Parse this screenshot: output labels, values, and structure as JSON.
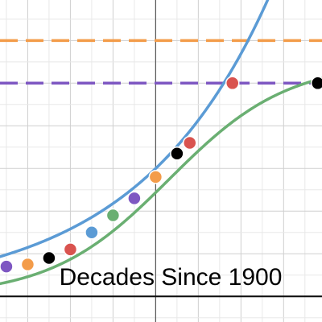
{
  "chart_data": {
    "type": "scatter",
    "title": "",
    "xlabel": "Decades Since 1900",
    "ylabel": "",
    "xlim": [
      -3.65,
      3.9
    ],
    "ylim": [
      -0.6,
      6.95
    ],
    "grid": true,
    "colors": {
      "blue": "#5b9bd5",
      "green": "#6aaf72",
      "orange": "#f39c4a",
      "purple": "#7e57c2",
      "red": "#d9534f",
      "black": "#000000"
    },
    "reference_lines": [
      {
        "y": 6.0,
        "color": "#f39c4a",
        "style": "dashed"
      },
      {
        "y": 5.0,
        "color": "#7e57c2",
        "style": "dashed"
      }
    ],
    "curves": [
      {
        "kind": "exponential",
        "a": 3.0,
        "b": 0.32,
        "color": "#5b9bd5"
      },
      {
        "kind": "logistic",
        "L": 5.5,
        "k": 0.72,
        "x0": 0.32,
        "color": "#6aaf72"
      }
    ],
    "series": [
      {
        "values": [
          {
            "x": -3.5,
            "y": 0.7,
            "color": "#7e57c2"
          },
          {
            "x": -3.0,
            "y": 0.75,
            "color": "#f39c4a"
          },
          {
            "x": -2.5,
            "y": 0.9,
            "color": "#000000"
          },
          {
            "x": -2.0,
            "y": 1.1,
            "color": "#d9534f"
          },
          {
            "x": -1.5,
            "y": 1.5,
            "color": "#5b9bd5"
          },
          {
            "x": -1.0,
            "y": 1.9,
            "color": "#6aaf72"
          },
          {
            "x": -0.5,
            "y": 2.3,
            "color": "#7e57c2"
          },
          {
            "x": 0.0,
            "y": 2.8,
            "color": "#f39c4a"
          },
          {
            "x": 0.5,
            "y": 3.35,
            "color": "#000000"
          },
          {
            "x": 0.8,
            "y": 3.6,
            "color": "#d9534f"
          },
          {
            "x": 1.8,
            "y": 5.0,
            "color": "#d9534f"
          },
          {
            "x": 3.8,
            "y": 5.0,
            "color": "#000000"
          }
        ]
      }
    ]
  }
}
